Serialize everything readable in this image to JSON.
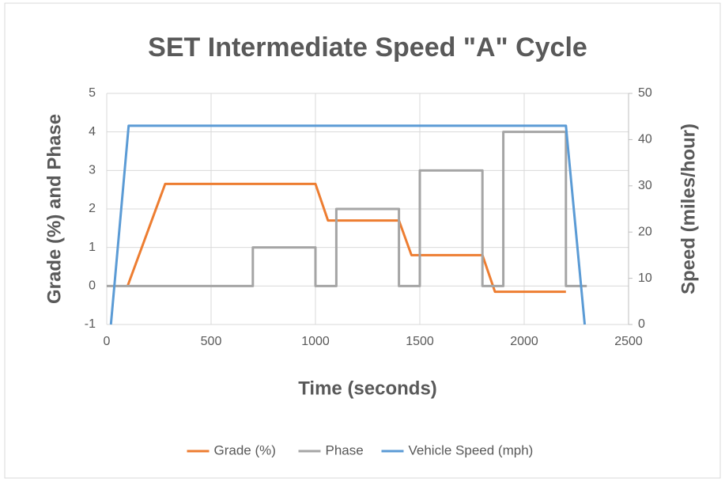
{
  "chart_data": {
    "type": "line",
    "title": "SET Intermediate Speed \"A\" Cycle",
    "x_label": "Time (seconds)",
    "y_label": "Grade (%) and Phase",
    "y2_label": "Speed (miles/hour)",
    "xlim": [
      0,
      2500
    ],
    "xticks": [
      0,
      500,
      1000,
      1500,
      2000,
      2500
    ],
    "ylim": [
      -1,
      5
    ],
    "yticks": [
      -1,
      0,
      1,
      2,
      3,
      4,
      5
    ],
    "y2lim": [
      0,
      50
    ],
    "y2ticks": [
      0,
      10,
      20,
      30,
      40,
      50
    ],
    "grid": true,
    "legend": "bottom",
    "series": [
      {
        "name": "Grade (%)",
        "color": "#ed7d31",
        "x": [
          100,
          280,
          1000,
          1060,
          1400,
          1460,
          1800,
          1860,
          2200
        ],
        "values": [
          0,
          2.65,
          2.65,
          1.7,
          1.7,
          0.8,
          0.8,
          -0.15,
          -0.15
        ]
      },
      {
        "name": "Phase",
        "color": "#a5a5a5",
        "x": [
          0,
          700,
          700,
          1000,
          1000,
          1100,
          1100,
          1400,
          1400,
          1500,
          1500,
          1800,
          1800,
          1900,
          1900,
          2200,
          2200,
          2300
        ],
        "values": [
          0,
          0,
          1,
          1,
          0,
          0,
          2,
          2,
          0,
          0,
          3,
          3,
          0,
          0,
          4,
          4,
          0,
          0
        ]
      },
      {
        "name": "Vehicle Speed (mph)",
        "color": "#5b9bd5",
        "axis": "y2",
        "x": [
          20,
          105,
          2200,
          2290
        ],
        "values": [
          0,
          43,
          43,
          0
        ]
      }
    ]
  }
}
